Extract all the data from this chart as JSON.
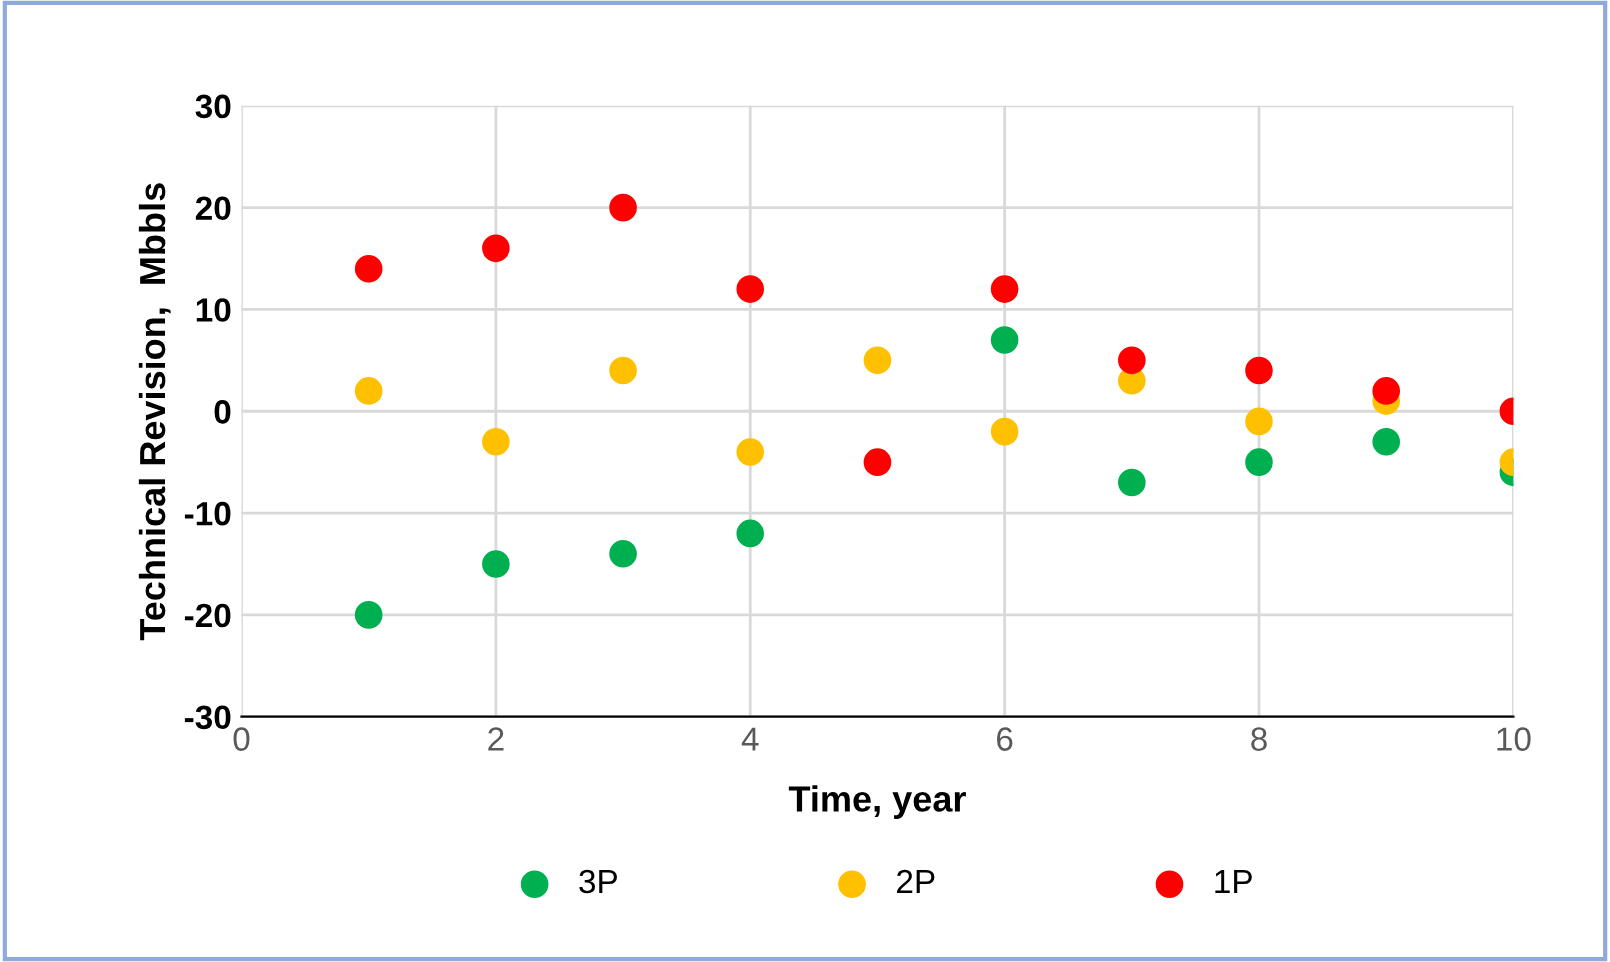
{
  "chart_data": {
    "type": "scatter",
    "xlabel": "Time, year",
    "ylabel": "Technical Revision,  Mbbls",
    "x": [
      1,
      2,
      3,
      4,
      5,
      6,
      7,
      8,
      9,
      10
    ],
    "series": [
      {
        "name": "3P",
        "color": "#00b050",
        "values": [
          -20,
          -15,
          -14,
          -12,
          null,
          7,
          -7,
          -5,
          -3,
          -6
        ]
      },
      {
        "name": "2P",
        "color": "#ffc000",
        "values": [
          2,
          -3,
          4,
          -4,
          5,
          -2,
          3,
          -1,
          1,
          -5
        ]
      },
      {
        "name": "1P",
        "color": "#ff0000",
        "values": [
          14,
          16,
          20,
          12,
          -5,
          12,
          5,
          4,
          2,
          0
        ]
      }
    ],
    "xlim": [
      0,
      10
    ],
    "xticks": [
      0,
      2,
      4,
      6,
      8,
      10
    ],
    "ylim": [
      -30,
      30
    ],
    "yticks": [
      -30,
      -20,
      -10,
      0,
      10,
      20,
      30
    ],
    "grid": true,
    "legend": "bottom",
    "marker": "circle"
  }
}
